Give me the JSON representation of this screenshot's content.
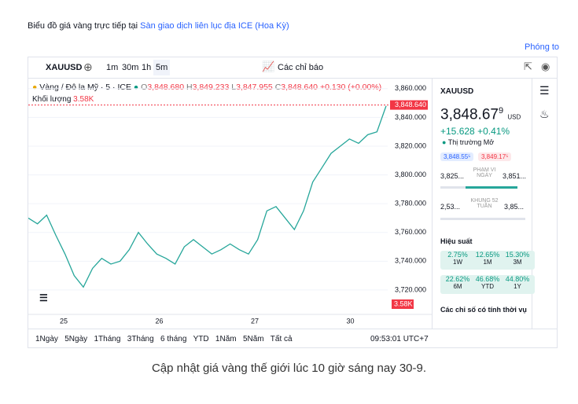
{
  "header": {
    "text": "Biểu đồ giá vàng trực tiếp tại ",
    "link": "Sàn giao dịch liên lục địa ICE (Hoa Kỳ)",
    "zoom": "Phóng to"
  },
  "toolbar": {
    "symbol": "XAUUSD",
    "intervals": [
      "1m",
      "30m",
      "1h",
      "5m"
    ],
    "indicators": "Các chỉ báo"
  },
  "legend": {
    "name": "Vàng / Đô la Mỹ · 5 · ICE",
    "ohlc": [
      {
        "k": "O",
        "v": "3,848.680"
      },
      {
        "k": "H",
        "v": "3,849.233"
      },
      {
        "k": "L",
        "v": "3,847.955"
      },
      {
        "k": "C",
        "v": "3,848.640"
      }
    ],
    "change": "+0.130 (+0.00%)",
    "volume_label": "Khối lượng",
    "volume": "3.58K"
  },
  "chart_data": {
    "type": "line",
    "color": "#26a69a",
    "values": [
      3770,
      3766,
      3772,
      3758,
      3745,
      3730,
      3722,
      3735,
      3742,
      3738,
      3740,
      3748,
      3760,
      3752,
      3745,
      3742,
      3738,
      3750,
      3755,
      3750,
      3745,
      3748,
      3752,
      3748,
      3745,
      3755,
      3775,
      3778,
      3770,
      3762,
      3775,
      3795,
      3805,
      3815,
      3820,
      3825,
      3822,
      3828,
      3830,
      3848
    ],
    "ylim": [
      3703,
      3867
    ],
    "yticks": [
      {
        "value": 3720,
        "label": "3,720.000"
      },
      {
        "value": 3740,
        "label": "3,740.000"
      },
      {
        "value": 3760,
        "label": "3,760.000"
      },
      {
        "value": 3780,
        "label": "3,780.000"
      },
      {
        "value": 3800,
        "label": "3,800.000"
      },
      {
        "value": 3820,
        "label": "3,820.000"
      },
      {
        "value": 3840,
        "label": "3,840.000"
      },
      {
        "value": 3860,
        "label": "3,860.000"
      }
    ],
    "last": {
      "value": 3848.64,
      "label": "3,848.640"
    },
    "volume_tag": "3.58K",
    "x_labels": [
      "25",
      "26",
      "27",
      "30"
    ],
    "grid": true
  },
  "panel": {
    "symbol": "XAUUSD",
    "price": "3,848.67",
    "price_sup": "9",
    "currency": "USD",
    "change": "+15.628",
    "change_pct": "+0.41%",
    "status": "Thị trường Mở",
    "bid": "3,848.55⁵",
    "ask": "3,849.17⁵",
    "day_low": "3,825...",
    "day_label": "PHẠM VI NGÀY",
    "day_high": "3,851...",
    "wk_low": "2,53...",
    "wk_label": "KHUNG 52 TUẦN",
    "wk_high": "3,85...",
    "perf_title": "Hiệu suất",
    "performance": [
      {
        "value": "2.75%",
        "period": "1W"
      },
      {
        "value": "12.65%",
        "period": "1M"
      },
      {
        "value": "15.30%",
        "period": "3M"
      },
      {
        "value": "22.62%",
        "period": "6M"
      },
      {
        "value": "46.68%",
        "period": "YTD"
      },
      {
        "value": "44.80%",
        "period": "1Y"
      }
    ],
    "seasonal": "Các chỉ số có tính thời vụ"
  },
  "footer": {
    "periods": [
      "1Ngày",
      "5Ngày",
      "1Tháng",
      "3Tháng",
      "6 tháng",
      "YTD",
      "1Năm",
      "5Năm",
      "Tất cả"
    ],
    "time": "09:53:01 UTC+7"
  },
  "caption": "Cập nhật giá vàng thế giới lúc 10 giờ sáng nay 30-9."
}
